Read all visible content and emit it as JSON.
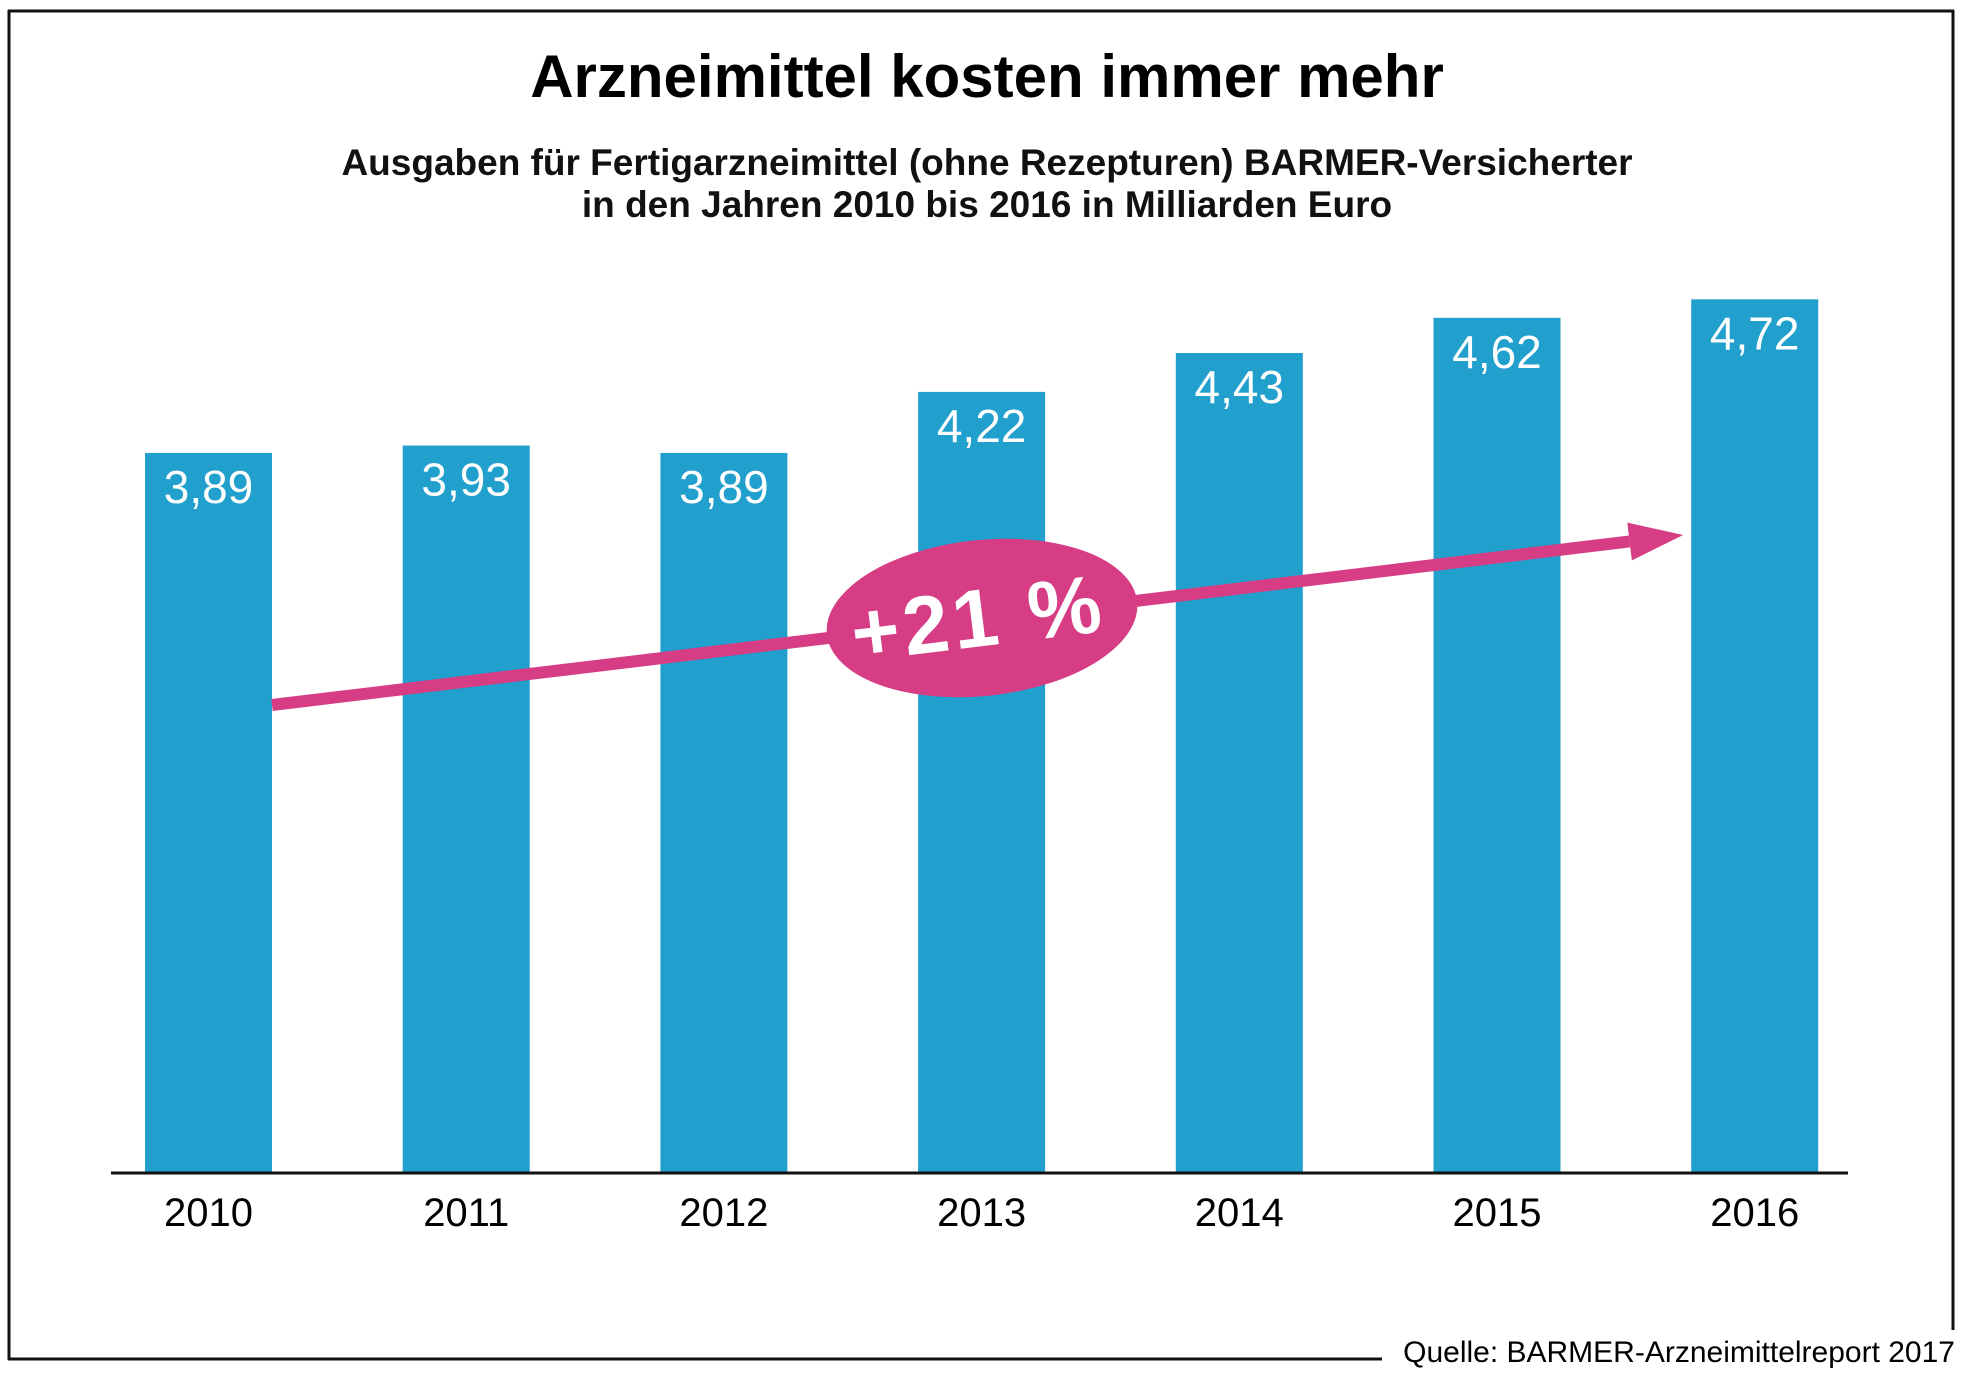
{
  "colors": {
    "bar": "#219FCD",
    "accent": "#D63D85",
    "text": "#000000",
    "label_on_bar": "#FFFFFF"
  },
  "chart_data": {
    "type": "bar",
    "title": "Arzneimittel kosten immer mehr",
    "subtitle_lines": [
      "Ausgaben für Fertigarzneimittel (ohne Rezepturen) BARMER-Versicherter",
      "in den Jahren 2010 bis 2016 in Milliarden Euro"
    ],
    "categories": [
      "2010",
      "2011",
      "2012",
      "2013",
      "2014",
      "2015",
      "2016"
    ],
    "values": [
      3.89,
      3.93,
      3.89,
      4.22,
      4.43,
      4.62,
      4.72
    ],
    "value_labels": [
      "3,89",
      "3,93",
      "3,89",
      "4,22",
      "4,43",
      "4,62",
      "4,72"
    ],
    "xlabel": "",
    "ylabel": "Milliarden Euro",
    "ylim": [
      0,
      4.72
    ],
    "grid": false,
    "value_labels_position": "inside-top",
    "annotation": {
      "type": "trend-arrow",
      "from_category": "2010",
      "to_category": "2016",
      "label": "+21 %"
    },
    "source": "Quelle: BARMER-Arzneimittelreport 2017"
  }
}
